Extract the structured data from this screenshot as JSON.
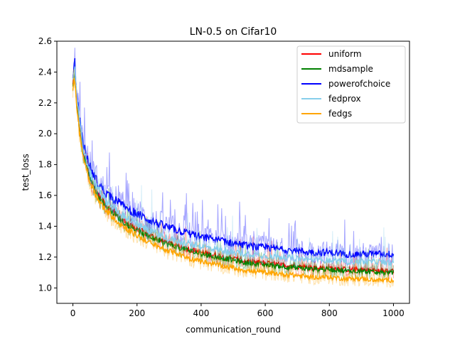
{
  "chart_data": {
    "type": "line",
    "title": "LN-0.5 on Cifar10",
    "xlabel": "communication_round",
    "ylabel": "test_loss",
    "xlim": [
      -50,
      1050
    ],
    "ylim": [
      0.9,
      2.6
    ],
    "xticks": [
      0,
      200,
      400,
      600,
      800,
      1000
    ],
    "yticks": [
      1.0,
      1.2,
      1.4,
      1.6,
      1.8,
      2.0,
      2.2,
      2.4,
      2.6
    ],
    "legend_position": "top-right",
    "series": [
      {
        "name": "uniform",
        "color": "#ff0000",
        "x": [
          0,
          5,
          10,
          20,
          30,
          50,
          75,
          100,
          150,
          200,
          250,
          300,
          350,
          400,
          450,
          500,
          550,
          600,
          650,
          700,
          750,
          800,
          850,
          900,
          950,
          1000
        ],
        "y": [
          2.31,
          2.42,
          2.25,
          2.05,
          1.9,
          1.74,
          1.62,
          1.55,
          1.45,
          1.38,
          1.33,
          1.29,
          1.26,
          1.23,
          1.21,
          1.19,
          1.17,
          1.16,
          1.15,
          1.14,
          1.13,
          1.13,
          1.12,
          1.12,
          1.11,
          1.11
        ]
      },
      {
        "name": "mdsample",
        "color": "#008000",
        "x": [
          0,
          5,
          10,
          20,
          30,
          50,
          75,
          100,
          150,
          200,
          250,
          300,
          350,
          400,
          450,
          500,
          550,
          600,
          650,
          700,
          750,
          800,
          850,
          900,
          950,
          1000
        ],
        "y": [
          2.32,
          2.4,
          2.24,
          2.04,
          1.89,
          1.73,
          1.61,
          1.54,
          1.44,
          1.37,
          1.32,
          1.28,
          1.25,
          1.22,
          1.2,
          1.18,
          1.16,
          1.15,
          1.14,
          1.13,
          1.12,
          1.12,
          1.11,
          1.11,
          1.1,
          1.1
        ]
      },
      {
        "name": "powerofchoice",
        "color": "#0000ff",
        "x": [
          0,
          5,
          10,
          20,
          30,
          50,
          75,
          100,
          150,
          200,
          250,
          300,
          350,
          400,
          450,
          500,
          550,
          600,
          650,
          700,
          750,
          800,
          850,
          900,
          950,
          1000
        ],
        "y": [
          2.35,
          2.5,
          2.3,
          2.1,
          1.95,
          1.8,
          1.69,
          1.62,
          1.54,
          1.48,
          1.43,
          1.39,
          1.36,
          1.33,
          1.31,
          1.29,
          1.27,
          1.26,
          1.25,
          1.24,
          1.23,
          1.23,
          1.22,
          1.22,
          1.22,
          1.22
        ]
      },
      {
        "name": "fedprox",
        "color": "#87ceeb",
        "x": [
          0,
          5,
          10,
          20,
          30,
          50,
          75,
          100,
          150,
          200,
          250,
          300,
          350,
          400,
          450,
          500,
          550,
          600,
          650,
          700,
          750,
          800,
          850,
          900,
          950,
          1000
        ],
        "y": [
          2.33,
          2.45,
          2.28,
          2.08,
          1.92,
          1.76,
          1.65,
          1.57,
          1.48,
          1.41,
          1.36,
          1.32,
          1.29,
          1.27,
          1.25,
          1.23,
          1.22,
          1.21,
          1.2,
          1.19,
          1.18,
          1.18,
          1.17,
          1.17,
          1.17,
          1.16
        ]
      },
      {
        "name": "fedgs",
        "color": "#ffa500",
        "x": [
          0,
          5,
          10,
          20,
          30,
          50,
          75,
          100,
          150,
          200,
          250,
          300,
          350,
          400,
          450,
          500,
          550,
          600,
          650,
          700,
          750,
          800,
          850,
          900,
          950,
          1000
        ],
        "y": [
          2.3,
          2.35,
          2.22,
          2.02,
          1.87,
          1.71,
          1.58,
          1.51,
          1.41,
          1.34,
          1.28,
          1.24,
          1.2,
          1.17,
          1.15,
          1.13,
          1.11,
          1.1,
          1.09,
          1.08,
          1.07,
          1.07,
          1.06,
          1.06,
          1.05,
          1.05
        ]
      }
    ]
  }
}
